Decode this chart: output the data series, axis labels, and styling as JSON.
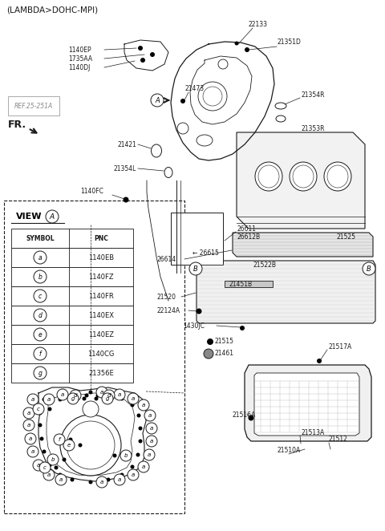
{
  "title": "(LAMBDA>DOHC-MPI)",
  "bg_color": "#ffffff",
  "line_color": "#1a1a1a",
  "gray_color": "#888888",
  "light_gray": "#cccccc",
  "table_headers": [
    "SYMBOL",
    "PNC"
  ],
  "table_rows": [
    [
      "a",
      "1140EB"
    ],
    [
      "b",
      "1140FZ"
    ],
    [
      "c",
      "1140FR"
    ],
    [
      "d",
      "1140EX"
    ],
    [
      "e",
      "1140EZ"
    ],
    [
      "f",
      "1140CG"
    ],
    [
      "g",
      "21356E"
    ]
  ]
}
